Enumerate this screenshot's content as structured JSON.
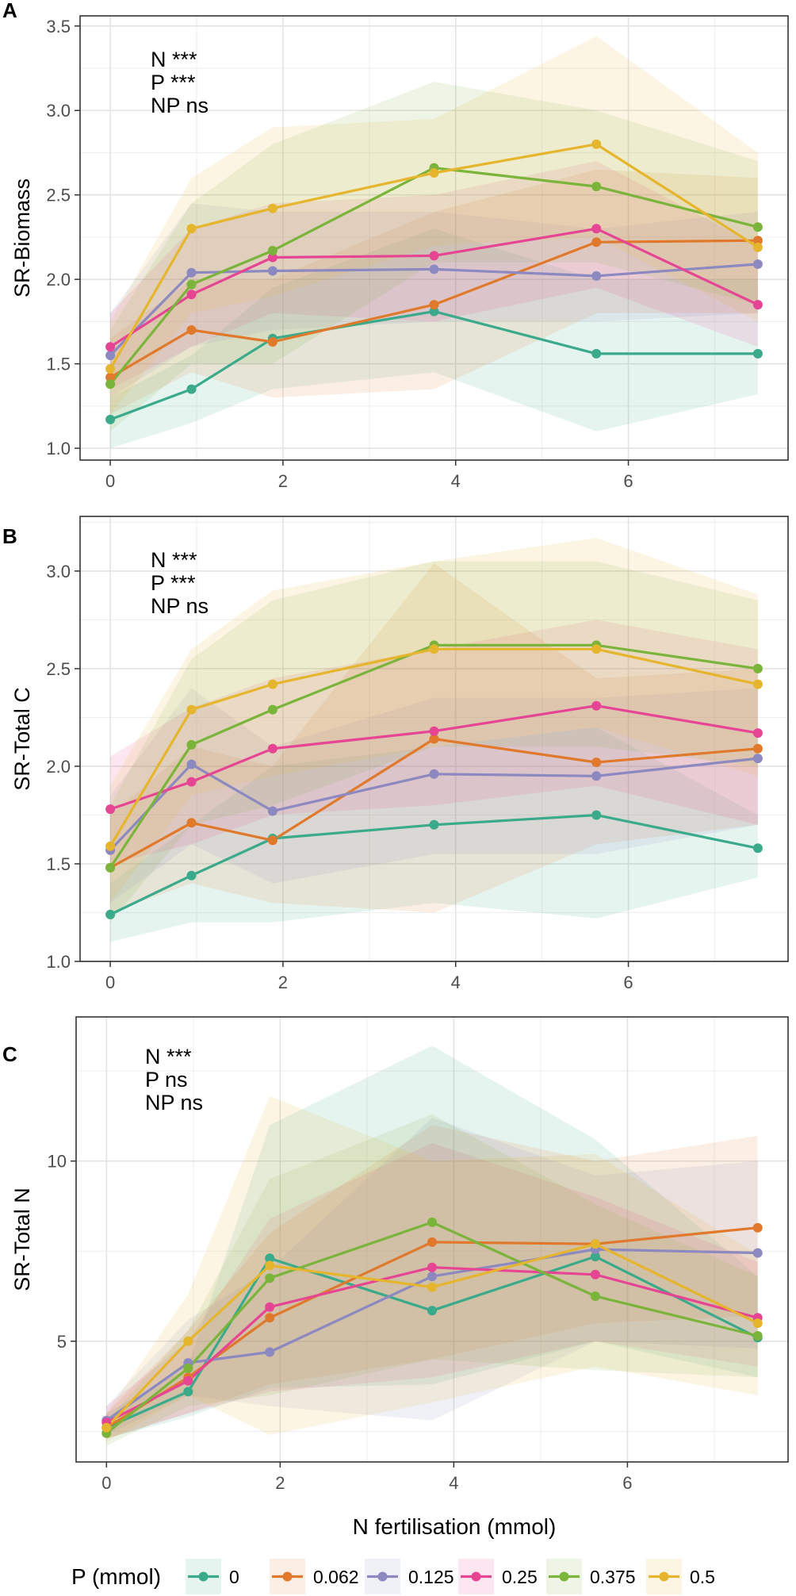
{
  "figure": {
    "xlabel": "N fertilisation (mmol)",
    "legend_title": "P (mmol)"
  },
  "colors": {
    "0": "#3aaa8a",
    "0.062": "#e0792b",
    "0.125": "#8c88c0",
    "0.25": "#e64594",
    "0.375": "#7ab43a",
    "0.5": "#e6b52e"
  },
  "chart_data": [
    {
      "type": "line",
      "panel": "A",
      "ylabel": "SR-Biomass",
      "annotations": [
        "N ***",
        "P ***",
        "NP ns"
      ],
      "x": [
        0,
        0.94,
        1.88,
        3.75,
        5.63,
        7.5
      ],
      "xticks": [
        0,
        2,
        4,
        6
      ],
      "xlim": [
        -0.35,
        7.85
      ],
      "yticks": [
        1.0,
        1.5,
        2.0,
        2.5,
        3.0,
        3.5
      ],
      "ytick_labels": [
        "1.0",
        "1.5",
        "2.0",
        "2.5",
        "3.0",
        "3.5"
      ],
      "ylim": [
        0.93,
        3.56
      ],
      "series": [
        {
          "name": "0",
          "values": [
            1.17,
            1.35,
            1.65,
            1.81,
            1.56,
            1.56
          ],
          "lower": [
            1.0,
            1.15,
            1.35,
            1.45,
            1.1,
            1.32
          ],
          "upper": [
            1.3,
            1.55,
            1.95,
            2.3,
            2.0,
            2.0
          ]
        },
        {
          "name": "0.062",
          "values": [
            1.42,
            1.7,
            1.63,
            1.85,
            2.22,
            2.23
          ],
          "lower": [
            1.2,
            1.45,
            1.3,
            1.35,
            1.8,
            1.8
          ],
          "upper": [
            1.65,
            2.0,
            2.0,
            2.4,
            2.65,
            2.6
          ]
        },
        {
          "name": "0.125",
          "values": [
            1.55,
            2.04,
            2.05,
            2.06,
            2.02,
            2.09
          ],
          "lower": [
            1.3,
            1.6,
            1.7,
            1.75,
            1.75,
            1.8
          ],
          "upper": [
            1.8,
            2.45,
            2.4,
            2.4,
            2.3,
            2.4
          ]
        },
        {
          "name": "0.25",
          "values": [
            1.6,
            1.91,
            2.13,
            2.14,
            2.3,
            1.85
          ],
          "lower": [
            1.35,
            1.6,
            1.8,
            1.75,
            1.95,
            1.6
          ],
          "upper": [
            1.8,
            2.3,
            2.45,
            2.5,
            2.7,
            2.2
          ]
        },
        {
          "name": "0.375",
          "values": [
            1.38,
            1.97,
            2.17,
            2.66,
            2.55,
            2.31
          ],
          "lower": [
            1.1,
            1.5,
            1.5,
            2.1,
            2.1,
            1.85
          ],
          "upper": [
            1.7,
            2.45,
            2.8,
            3.17,
            3.0,
            2.7
          ]
        },
        {
          "name": "0.5",
          "values": [
            1.47,
            2.3,
            2.42,
            2.63,
            2.8,
            2.19
          ],
          "lower": [
            1.2,
            1.8,
            1.9,
            2.2,
            2.25,
            1.75
          ],
          "upper": [
            1.75,
            2.6,
            2.9,
            2.95,
            3.44,
            2.75
          ]
        }
      ]
    },
    {
      "type": "line",
      "panel": "B",
      "ylabel": "SR-Total C",
      "annotations": [
        "N ***",
        "P ***",
        "NP ns"
      ],
      "x": [
        0,
        0.94,
        1.88,
        3.75,
        5.63,
        7.5
      ],
      "xticks": [
        0,
        2,
        4,
        6
      ],
      "xlim": [
        -0.35,
        7.85
      ],
      "yticks": [
        1.0,
        1.5,
        2.0,
        2.5,
        3.0
      ],
      "ytick_labels": [
        "1.0",
        "1.5",
        "2.0",
        "2.5",
        "3.0"
      ],
      "ylim": [
        1.0,
        3.28
      ],
      "series": [
        {
          "name": "0",
          "values": [
            1.24,
            1.44,
            1.63,
            1.7,
            1.75,
            1.58
          ],
          "lower": [
            1.1,
            1.2,
            1.2,
            1.3,
            1.22,
            1.43
          ],
          "upper": [
            1.4,
            1.7,
            2.0,
            2.1,
            2.2,
            1.75
          ]
        },
        {
          "name": "0.062",
          "values": [
            1.48,
            1.71,
            1.62,
            2.14,
            2.02,
            2.09
          ],
          "lower": [
            1.25,
            1.4,
            1.3,
            1.25,
            1.6,
            1.7
          ],
          "upper": [
            1.75,
            2.1,
            2.0,
            3.04,
            2.45,
            2.5
          ]
        },
        {
          "name": "0.125",
          "values": [
            1.57,
            2.01,
            1.77,
            1.96,
            1.95,
            2.04
          ],
          "lower": [
            1.3,
            1.6,
            1.4,
            1.55,
            1.55,
            1.7
          ],
          "upper": [
            1.85,
            2.4,
            2.1,
            2.35,
            2.35,
            2.4
          ]
        },
        {
          "name": "0.25",
          "values": [
            1.78,
            1.92,
            2.09,
            2.18,
            2.31,
            2.17
          ],
          "lower": [
            1.5,
            1.6,
            1.75,
            1.8,
            1.9,
            1.7
          ],
          "upper": [
            2.05,
            2.3,
            2.45,
            2.6,
            2.75,
            2.6
          ]
        },
        {
          "name": "0.375",
          "values": [
            1.48,
            2.11,
            2.29,
            2.62,
            2.62,
            2.5
          ],
          "lower": [
            1.2,
            1.7,
            1.8,
            2.1,
            2.1,
            2.0
          ],
          "upper": [
            1.8,
            2.55,
            2.85,
            3.05,
            3.05,
            2.85
          ]
        },
        {
          "name": "0.5",
          "values": [
            1.59,
            2.29,
            2.42,
            2.6,
            2.6,
            2.42
          ],
          "lower": [
            1.3,
            1.85,
            1.95,
            2.1,
            2.2,
            1.95
          ],
          "upper": [
            1.9,
            2.6,
            2.9,
            3.05,
            3.17,
            2.88
          ]
        }
      ]
    },
    {
      "type": "line",
      "panel": "C",
      "ylabel": "SR-Total N",
      "annotations": [
        "N ***",
        "P ns",
        "NP ns"
      ],
      "x": [
        0,
        0.94,
        1.88,
        3.75,
        5.63,
        7.5
      ],
      "xticks": [
        0,
        2,
        4,
        6
      ],
      "xlim": [
        -0.35,
        7.85
      ],
      "yticks": [
        5,
        10
      ],
      "ytick_labels": [
        "5",
        "10"
      ],
      "ylim": [
        1.65,
        14.0
      ],
      "series": [
        {
          "name": "0",
          "values": [
            2.6,
            3.6,
            7.3,
            5.85,
            7.35,
            5.1
          ],
          "lower": [
            2.3,
            2.9,
            3.7,
            3.8,
            5.0,
            4.0
          ],
          "upper": [
            3.0,
            4.3,
            11.0,
            13.2,
            10.6,
            6.8
          ]
        },
        {
          "name": "0.062",
          "values": [
            2.6,
            4.0,
            5.65,
            7.75,
            7.7,
            8.15
          ],
          "lower": [
            2.3,
            3.0,
            3.8,
            4.5,
            5.5,
            5.7
          ],
          "upper": [
            3.0,
            5.3,
            8.0,
            11.0,
            10.0,
            10.7
          ]
        },
        {
          "name": "0.125",
          "values": [
            2.8,
            4.4,
            4.7,
            6.8,
            7.55,
            7.45
          ],
          "lower": [
            2.4,
            3.5,
            3.2,
            2.8,
            5.0,
            4.8
          ],
          "upper": [
            3.2,
            5.6,
            7.0,
            11.2,
            9.6,
            10.0
          ]
        },
        {
          "name": "0.25",
          "values": [
            2.75,
            3.9,
            5.95,
            7.05,
            6.85,
            5.65
          ],
          "lower": [
            2.3,
            3.0,
            3.6,
            4.0,
            5.0,
            4.3
          ],
          "upper": [
            3.2,
            5.0,
            8.4,
            10.5,
            9.0,
            7.2
          ]
        },
        {
          "name": "0.375",
          "values": [
            2.45,
            4.25,
            6.75,
            8.3,
            6.25,
            5.15
          ],
          "lower": [
            2.1,
            3.2,
            3.5,
            4.5,
            4.2,
            4.0
          ],
          "upper": [
            2.8,
            5.3,
            9.5,
            11.3,
            8.8,
            6.8
          ]
        },
        {
          "name": "0.5",
          "values": [
            2.6,
            5.0,
            7.1,
            6.5,
            7.7,
            5.5
          ],
          "lower": [
            2.2,
            3.5,
            2.4,
            3.3,
            4.3,
            3.5
          ],
          "upper": [
            3.0,
            6.3,
            11.8,
            10.0,
            10.2,
            7.4
          ]
        }
      ]
    }
  ]
}
